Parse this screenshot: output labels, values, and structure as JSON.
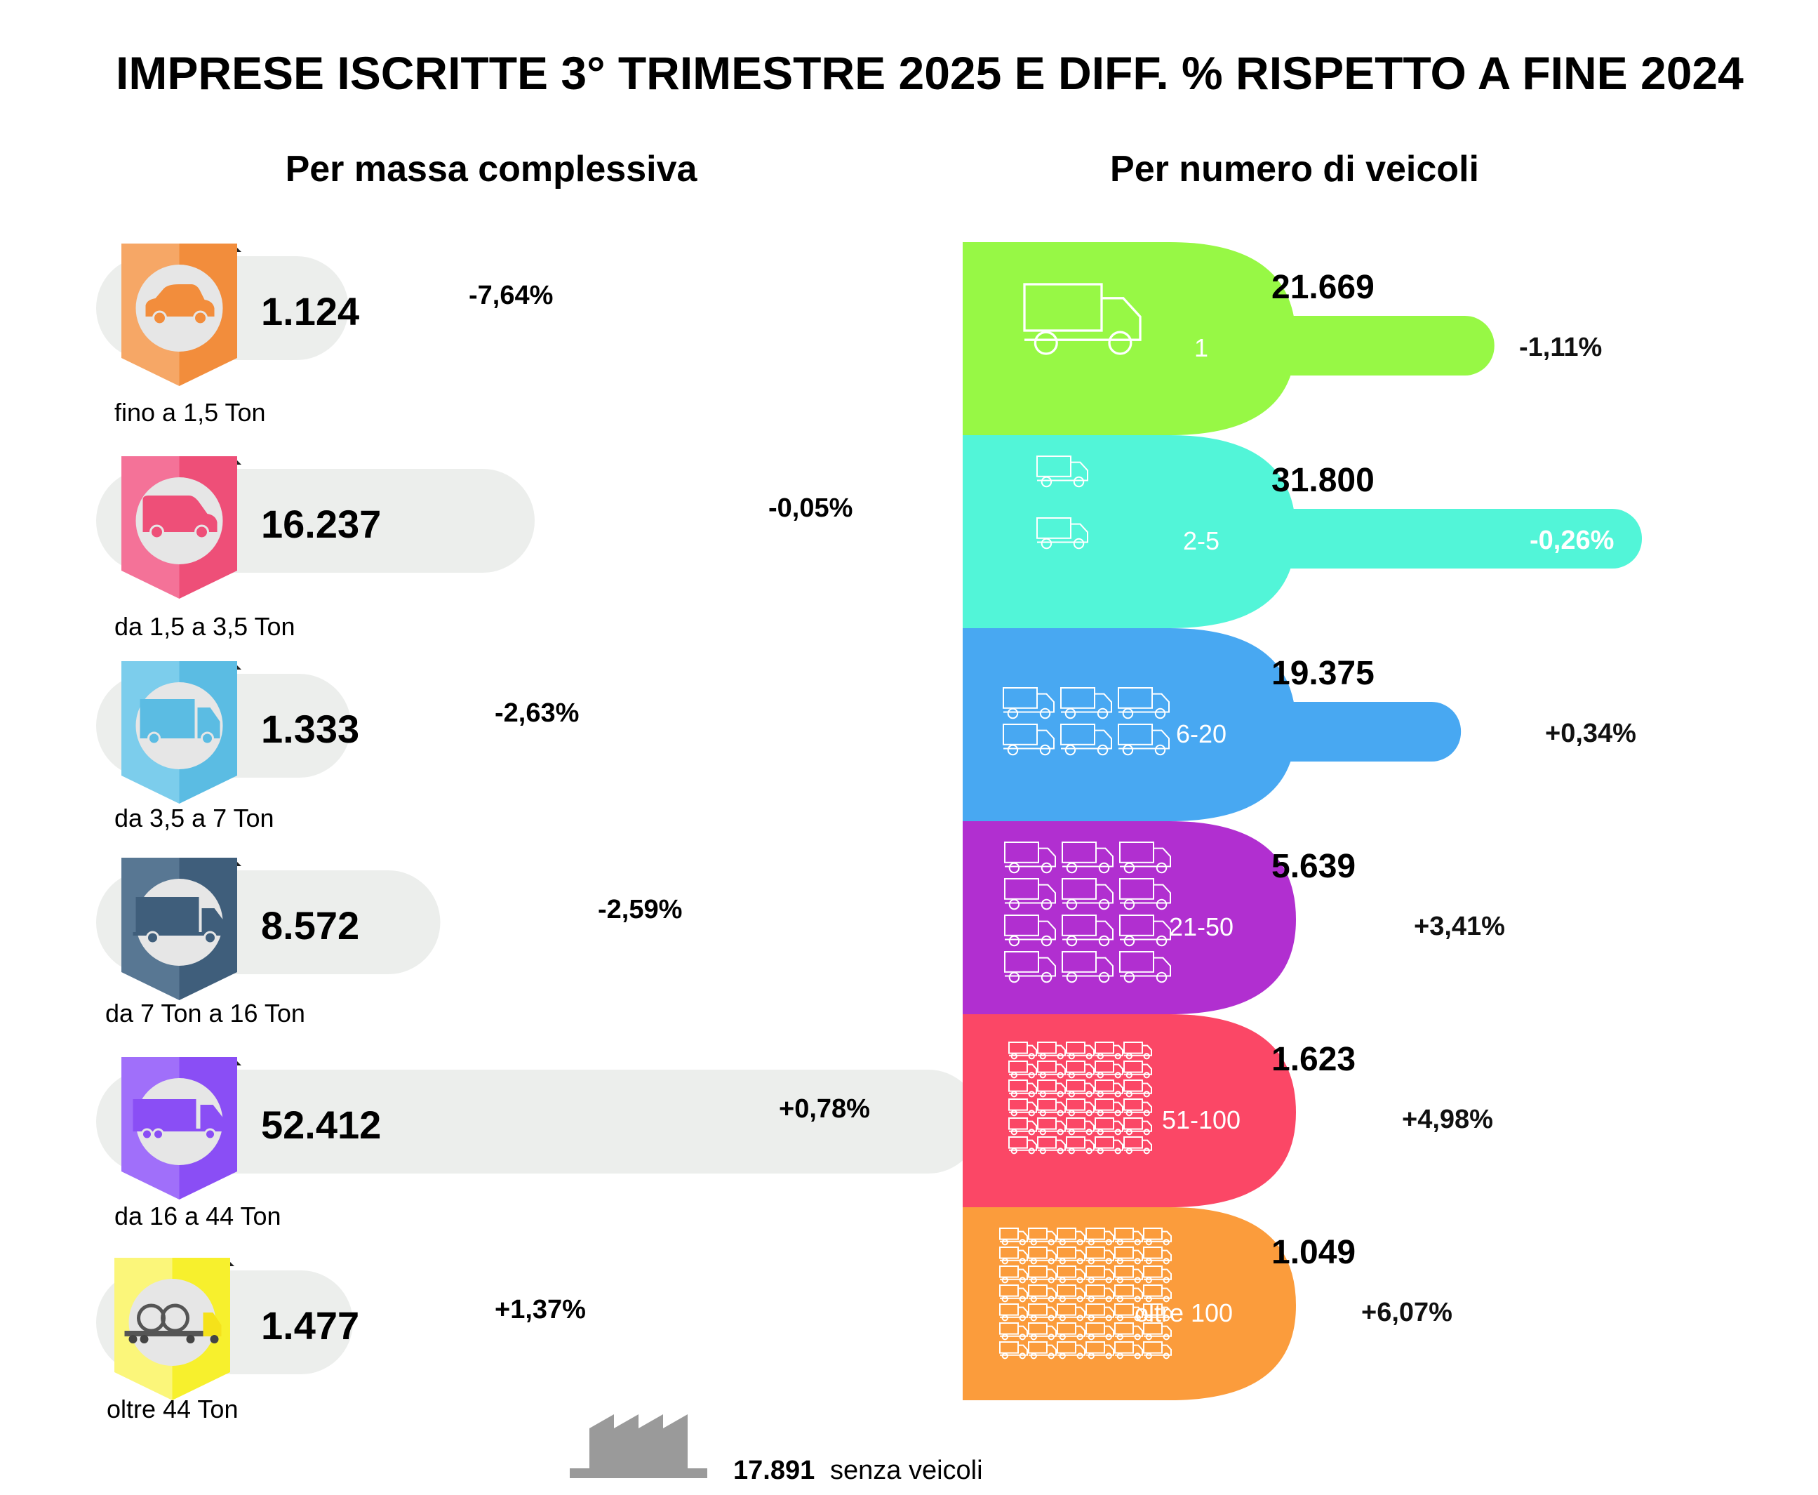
{
  "title": "IMPRESE ISCRITTE 3° TRIMESTRE 2025 E DIFF. % RISPETTO A FINE 2024",
  "left_subtitle": "Per massa complessiva",
  "right_subtitle": "Per numero di veicoli",
  "chart_data": [
    {
      "type": "bar",
      "orientation": "horizontal",
      "title": "Per massa complessiva",
      "categories": [
        "fino a 1,5 Ton",
        "da 1,5 a 3,5 Ton",
        "da 3,5 a 7 Ton",
        "da 7 Ton a 16 Ton",
        "da 16 a 44 Ton",
        "oltre 44 Ton"
      ],
      "values": [
        1124,
        16237,
        1333,
        8572,
        52412,
        1477
      ],
      "value_labels": [
        "1.124",
        "16.237",
        "1.333",
        "8.572",
        "52.412",
        "1.477"
      ],
      "diff_labels": [
        "-7,64%",
        "-0,05%",
        "-2,63%",
        "-2,59%",
        "+0,78%",
        "+1,37%"
      ],
      "diff_values": [
        -7.64,
        -0.05,
        -2.63,
        -2.59,
        0.78,
        1.37
      ],
      "icons": [
        "car-icon",
        "van-icon",
        "light-truck-icon",
        "truck-icon",
        "semi-truck-icon",
        "trailer-truck-icon"
      ],
      "colors": [
        "#f28d3c",
        "#ee4f78",
        "#5bbce3",
        "#3f5e7b",
        "#8a4ef5",
        "#f7f02d"
      ],
      "colors_light": [
        "#f6a766",
        "#f47298",
        "#7ccdec",
        "#587793",
        "#a06ffa",
        "#fbf67a"
      ]
    },
    {
      "type": "bar",
      "orientation": "horizontal",
      "title": "Per numero di veicoli",
      "categories": [
        "1",
        "2-5",
        "6-20",
        "21-50",
        "51-100",
        "oltre 100"
      ],
      "values": [
        21669,
        31800,
        19375,
        5639,
        1623,
        1049
      ],
      "value_labels": [
        "21.669",
        "31.800",
        "19.375",
        "5.639",
        "1.623",
        "1.049"
      ],
      "diff_labels": [
        "-1,11%",
        "-0,26%",
        "+0,34%",
        "+3,41%",
        "+4,98%",
        "+6,07%"
      ],
      "diff_values": [
        -1.11,
        -0.26,
        0.34,
        3.41,
        4.98,
        6.07
      ],
      "icon_counts": [
        1,
        2,
        6,
        12,
        30,
        42
      ],
      "colors": [
        "#97f845",
        "#52f5d8",
        "#48a8f2",
        "#b12fd0",
        "#fb4766",
        "#fb9c3c"
      ]
    }
  ],
  "footer": {
    "value": "17.891",
    "label": "senza veicoli",
    "icon": "factory-icon"
  }
}
